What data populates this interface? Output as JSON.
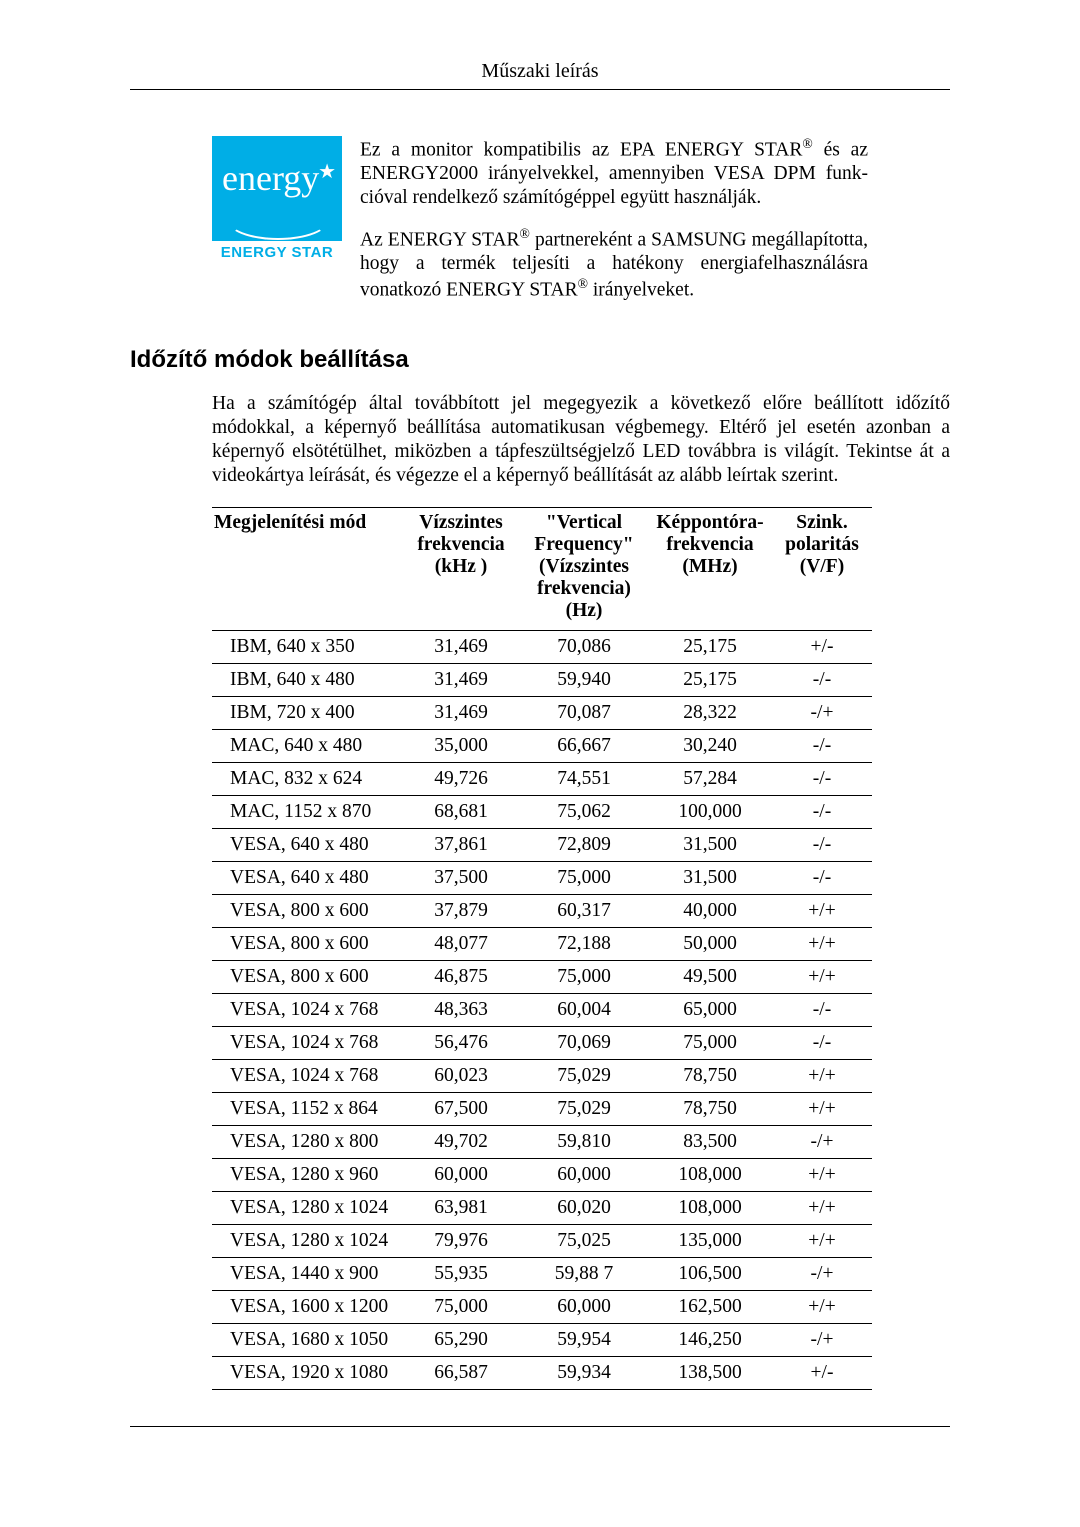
{
  "header": {
    "title": "Műszaki leírás"
  },
  "energy_star": {
    "logo": {
      "script": "energy",
      "bar": "ENERGY STAR",
      "bg_color": "#00aee6"
    },
    "para1_a": "Ez a monitor kompatibilis az EPA ENERGY STAR",
    "para1_b": " és az ENERGY2000 irányelvekkel, amennyiben VESA DPM funk­cióval rendelkező számítógéppel együtt használják.",
    "para2_a": "Az ENERGY STAR",
    "para2_b": " partnereként a SAMSUNG megállapí­totta, hogy a termék teljesíti a hatékony energiafelhasználásra vonatkozó ENERGY STAR",
    "para2_c": " irányelveket."
  },
  "section": {
    "title": "Időzítő módok beállítása",
    "intro": "Ha a számítógép által továbbított jel megegyezik a következő előre beállított időzítő módokkal, a képernyő beállítása automatikusan végbemegy. Eltérő jel esetén azonban a képernyő elsötétülhet, mi­közben a tápfeszültségjelző LED továbbra is világít. Tekintse át a videokártya leírását, és végezze el a képernyő beállítását az alább leírtak szerint."
  },
  "table": {
    "columns": [
      "Megjelenítési mód",
      "Vízszintes frekvencia (kHz )",
      "\"Vertical Frequen­cy\" (Vízs­zintes frek­vencia) (Hz)",
      "Képpontóra-frekvencia (MHz)",
      "Szink. polari­tás (V/F)"
    ],
    "col_widths": [
      "190px",
      "118px",
      "128px",
      "124px",
      "100px"
    ],
    "rows": [
      [
        "IBM, 640 x 350",
        "31,469",
        "70,086",
        "25,175",
        "+/-"
      ],
      [
        "IBM, 640 x 480",
        "31,469",
        "59,940",
        "25,175",
        "-/-"
      ],
      [
        "IBM, 720 x 400",
        "31,469",
        "70,087",
        "28,322",
        "-/+"
      ],
      [
        "MAC, 640 x 480",
        "35,000",
        "66,667",
        "30,240",
        "-/-"
      ],
      [
        "MAC, 832 x 624",
        "49,726",
        "74,551",
        "57,284",
        "-/-"
      ],
      [
        "MAC, 1152 x 870",
        "68,681",
        "75,062",
        "100,000",
        "-/-"
      ],
      [
        "VESA, 640 x 480",
        "37,861",
        "72,809",
        "31,500",
        "-/-"
      ],
      [
        "VESA, 640 x 480",
        "37,500",
        "75,000",
        "31,500",
        "-/-"
      ],
      [
        "VESA, 800 x 600",
        "37,879",
        "60,317",
        "40,000",
        "+/+"
      ],
      [
        "VESA, 800 x 600",
        "48,077",
        "72,188",
        "50,000",
        "+/+"
      ],
      [
        "VESA, 800 x 600",
        "46,875",
        "75,000",
        "49,500",
        "+/+"
      ],
      [
        "VESA, 1024 x 768",
        "48,363",
        "60,004",
        "65,000",
        "-/-"
      ],
      [
        "VESA, 1024 x 768",
        "56,476",
        "70,069",
        "75,000",
        "-/-"
      ],
      [
        "VESA, 1024 x 768",
        "60,023",
        "75,029",
        "78,750",
        "+/+"
      ],
      [
        "VESA, 1152 x 864",
        "67,500",
        "75,029",
        "78,750",
        "+/+"
      ],
      [
        "VESA, 1280 x 800",
        "49,702",
        "59,810",
        "83,500",
        "-/+"
      ],
      [
        "VESA, 1280 x 960",
        "60,000",
        "60,000",
        "108,000",
        "+/+"
      ],
      [
        "VESA, 1280 x 1024",
        "63,981",
        "60,020",
        "108,000",
        "+/+"
      ],
      [
        "VESA, 1280 x 1024",
        "79,976",
        "75,025",
        "135,000",
        "+/+"
      ],
      [
        "VESA, 1440 x 900",
        "55,935",
        "59,88 7",
        "106,500",
        "-/+"
      ],
      [
        "VESA, 1600 x 1200",
        "75,000",
        "60,000",
        "162,500",
        "+/+"
      ],
      [
        "VESA, 1680 x 1050",
        "65,290",
        "59,954",
        "146,250",
        "-/+"
      ],
      [
        "VESA, 1920 x 1080",
        "66,587",
        "59,934",
        "138,500",
        "+/-"
      ]
    ]
  }
}
